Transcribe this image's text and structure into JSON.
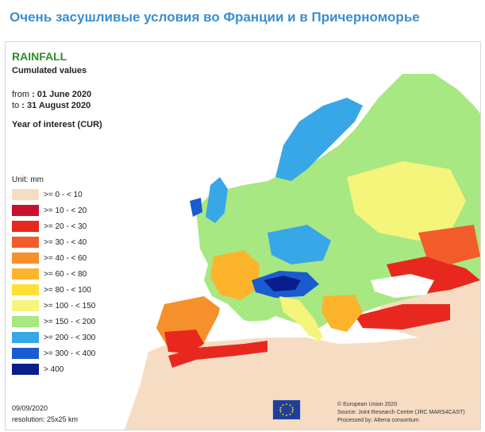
{
  "header": {
    "title": "Очень засушливые условия во Франции и в Причерноморье"
  },
  "map": {
    "title": "RAINFALL",
    "subtitle": "Cumulated values",
    "period": {
      "from_label": "from",
      "from_value": ": 01 June 2020",
      "to_label": "to",
      "to_value": ": 31 August 2020"
    },
    "year_label": "Year of interest (CUR)",
    "unit_label": "Unit: mm",
    "legend": [
      {
        "label": ">= 0 - < 10",
        "color": "#f7dcc4"
      },
      {
        "label": ">= 10 - < 20",
        "color": "#c8102e"
      },
      {
        "label": ">= 20 - < 30",
        "color": "#e8281e"
      },
      {
        "label": ">= 30 - < 40",
        "color": "#f25c2a"
      },
      {
        "label": ">= 40 - < 60",
        "color": "#f6902a"
      },
      {
        "label": ">= 60 - < 80",
        "color": "#fbb42c"
      },
      {
        "label": ">= 80 - < 100",
        "color": "#ffe135"
      },
      {
        "label": ">= 100 - < 150",
        "color": "#f4f57a"
      },
      {
        "label": ">= 150 - < 200",
        "color": "#a8e882"
      },
      {
        "label": ">= 200 - < 300",
        "color": "#37a7e8"
      },
      {
        "label": ">= 300 - < 400",
        "color": "#1a5bd0"
      },
      {
        "label": "> 400",
        "color": "#0a1d8c"
      }
    ],
    "date": "09/09/2020",
    "resolution": "resolution: 25x25 km",
    "credits": [
      "© European Union 2020",
      "Source: Joint Research Centre (JRC MARS4CAST)",
      "Processed by: Alterra consortium"
    ],
    "eu_text": "",
    "colors": {
      "sea": "#ffffff",
      "no_data": "#f7dcc4",
      "wet": "#1a5bd0",
      "very_wet": "#0a1d8c",
      "dry": "#e8281e"
    }
  }
}
